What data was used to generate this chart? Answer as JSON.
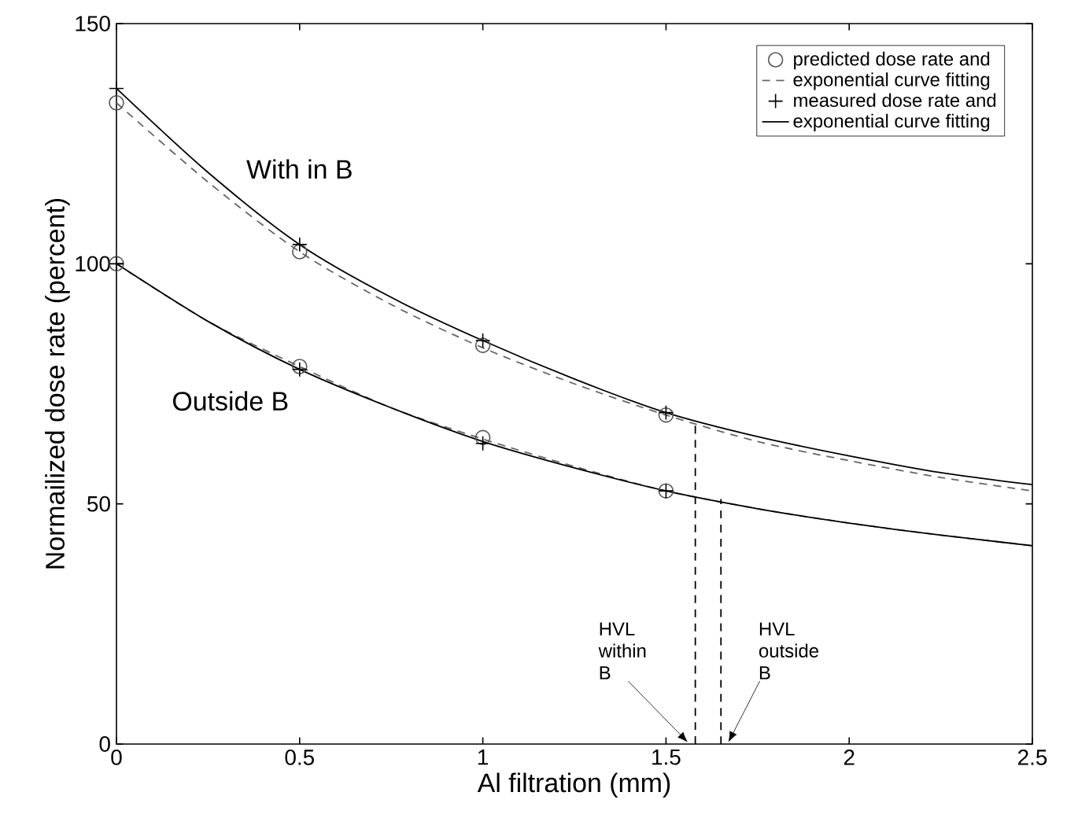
{
  "chart_data": {
    "type": "line",
    "xlabel": "Al filtration (mm)",
    "ylabel": "Normailized dose rate (percent)",
    "xlim": [
      0,
      2.5
    ],
    "ylim": [
      0,
      150
    ],
    "xticks": [
      0,
      0.5,
      1,
      1.5,
      2,
      2.5
    ],
    "yticks": [
      0,
      50,
      100,
      150
    ],
    "legend": "top right",
    "series": [
      {
        "name": "predicted dose rate and",
        "type": "scatter",
        "marker": "circle",
        "color": "#555555",
        "x": [
          0,
          0.5,
          1,
          1.5
        ],
        "values": [
          133.5,
          102.5,
          83,
          68.5
        ]
      },
      {
        "name": "exponential curve fitting",
        "line_style": "dashed",
        "color": "#666666",
        "x": [
          0,
          0.25,
          0.5,
          0.75,
          1,
          1.25,
          1.5,
          1.75,
          2,
          2.25,
          2.5
        ],
        "values": [
          133.5,
          117,
          102.5,
          91.5,
          82.5,
          75,
          68.5,
          63,
          59,
          55.5,
          52.7
        ]
      },
      {
        "name": "measured dose rate and",
        "type": "scatter",
        "marker": "cross",
        "color": "#000000",
        "x": [
          0,
          0.5,
          1,
          1.5
        ],
        "values": [
          136.5,
          104,
          84,
          69
        ]
      },
      {
        "name": "exponential curve fitting",
        "line_style": "solid",
        "color": "#000000",
        "x": [
          0,
          0.25,
          0.5,
          0.75,
          1,
          1.25,
          1.5,
          1.75,
          2,
          2.25,
          2.5
        ],
        "values": [
          136.5,
          119,
          104,
          93,
          84,
          76,
          69,
          64,
          60,
          56.5,
          54
        ]
      },
      {
        "type": "scatter",
        "marker": "circle",
        "color": "#555555",
        "x": [
          0,
          0.5,
          1,
          1.5
        ],
        "values": [
          100,
          78.6,
          63.8,
          52.7
        ]
      },
      {
        "line_style": "dashed",
        "color": "#666666",
        "x": [
          0,
          0.25,
          0.5,
          0.75,
          1,
          1.25,
          1.5,
          1.75,
          2,
          2.25,
          2.5
        ],
        "values": [
          100,
          88,
          78.6,
          70,
          63.5,
          57.8,
          52.7,
          49,
          46,
          43.5,
          41.3
        ]
      },
      {
        "type": "scatter",
        "marker": "cross",
        "color": "#000000",
        "x": [
          0,
          0.5,
          1,
          1.5
        ],
        "values": [
          100,
          78,
          62.6,
          52.7
        ]
      },
      {
        "line_style": "solid",
        "color": "#000000",
        "x": [
          0,
          0.25,
          0.5,
          0.75,
          1,
          1.25,
          1.5,
          1.75,
          2,
          2.25,
          2.5
        ],
        "values": [
          100,
          88,
          78,
          70,
          63,
          57.5,
          52.7,
          49,
          46,
          43.5,
          41.3
        ]
      },
      {
        "line_style": "dashed",
        "color": "#000000",
        "x": [
          1.58,
          1.58
        ],
        "values": [
          0,
          67.5
        ]
      },
      {
        "line_style": "dashed",
        "color": "#000000",
        "x": [
          1.65,
          1.65
        ],
        "values": [
          0,
          51
        ]
      }
    ],
    "annotations": [
      "With in B",
      "Outside B",
      {
        "text": "HVL within B",
        "x": 1.56,
        "y": 0
      },
      {
        "text": "HVL outside B",
        "x": 1.67,
        "y": 0
      }
    ]
  }
}
